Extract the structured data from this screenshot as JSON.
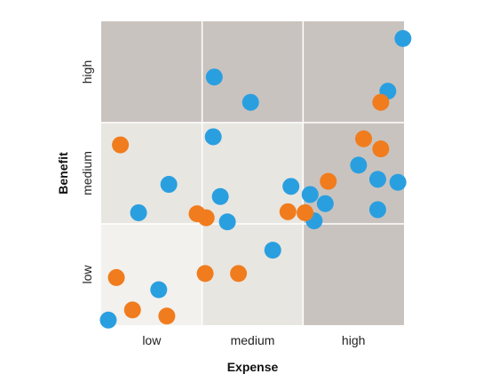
{
  "chart_data": {
    "type": "scatter",
    "xlabel": "Expense",
    "ylabel": "Benefit",
    "xticks": [
      "low",
      "medium",
      "high"
    ],
    "yticks": [
      "low",
      "medium",
      "high"
    ],
    "xlim": [
      0,
      3
    ],
    "ylim": [
      0,
      3
    ],
    "grid": true,
    "cell_colors": [
      [
        "#f2f1ed",
        "#e8e6e1",
        "#c9c3bf"
      ],
      [
        "#e8e6e1",
        "#e8e6e1",
        "#c9c3bf"
      ],
      [
        "#c9c3bf",
        "#c9c3bf",
        "#c9c3bf"
      ]
    ],
    "series": [
      {
        "color": "#2a9fe0",
        "points": [
          {
            "x": 0.07,
            "y": 0.05
          },
          {
            "x": 0.57,
            "y": 0.35
          },
          {
            "x": 0.37,
            "y": 1.11
          },
          {
            "x": 0.67,
            "y": 1.39
          },
          {
            "x": 1.11,
            "y": 1.86
          },
          {
            "x": 1.12,
            "y": 2.45
          },
          {
            "x": 1.18,
            "y": 1.27
          },
          {
            "x": 1.25,
            "y": 1.02
          },
          {
            "x": 1.48,
            "y": 2.2
          },
          {
            "x": 1.7,
            "y": 0.74
          },
          {
            "x": 1.88,
            "y": 1.37
          },
          {
            "x": 2.07,
            "y": 1.29
          },
          {
            "x": 2.11,
            "y": 1.03
          },
          {
            "x": 2.22,
            "y": 1.2
          },
          {
            "x": 2.55,
            "y": 1.58
          },
          {
            "x": 2.74,
            "y": 1.44
          },
          {
            "x": 2.74,
            "y": 1.14
          },
          {
            "x": 2.94,
            "y": 1.41
          },
          {
            "x": 2.84,
            "y": 2.31
          },
          {
            "x": 2.99,
            "y": 2.83
          }
        ]
      },
      {
        "color": "#f07c1e",
        "points": [
          {
            "x": 0.19,
            "y": 1.78
          },
          {
            "x": 0.15,
            "y": 0.47
          },
          {
            "x": 0.31,
            "y": 0.15
          },
          {
            "x": 0.65,
            "y": 0.09
          },
          {
            "x": 0.95,
            "y": 1.1
          },
          {
            "x": 1.04,
            "y": 1.06
          },
          {
            "x": 1.03,
            "y": 0.51
          },
          {
            "x": 1.36,
            "y": 0.51
          },
          {
            "x": 1.85,
            "y": 1.12
          },
          {
            "x": 2.02,
            "y": 1.11
          },
          {
            "x": 2.25,
            "y": 1.42
          },
          {
            "x": 2.6,
            "y": 1.84
          },
          {
            "x": 2.77,
            "y": 1.74
          },
          {
            "x": 2.77,
            "y": 2.2
          }
        ]
      }
    ]
  }
}
